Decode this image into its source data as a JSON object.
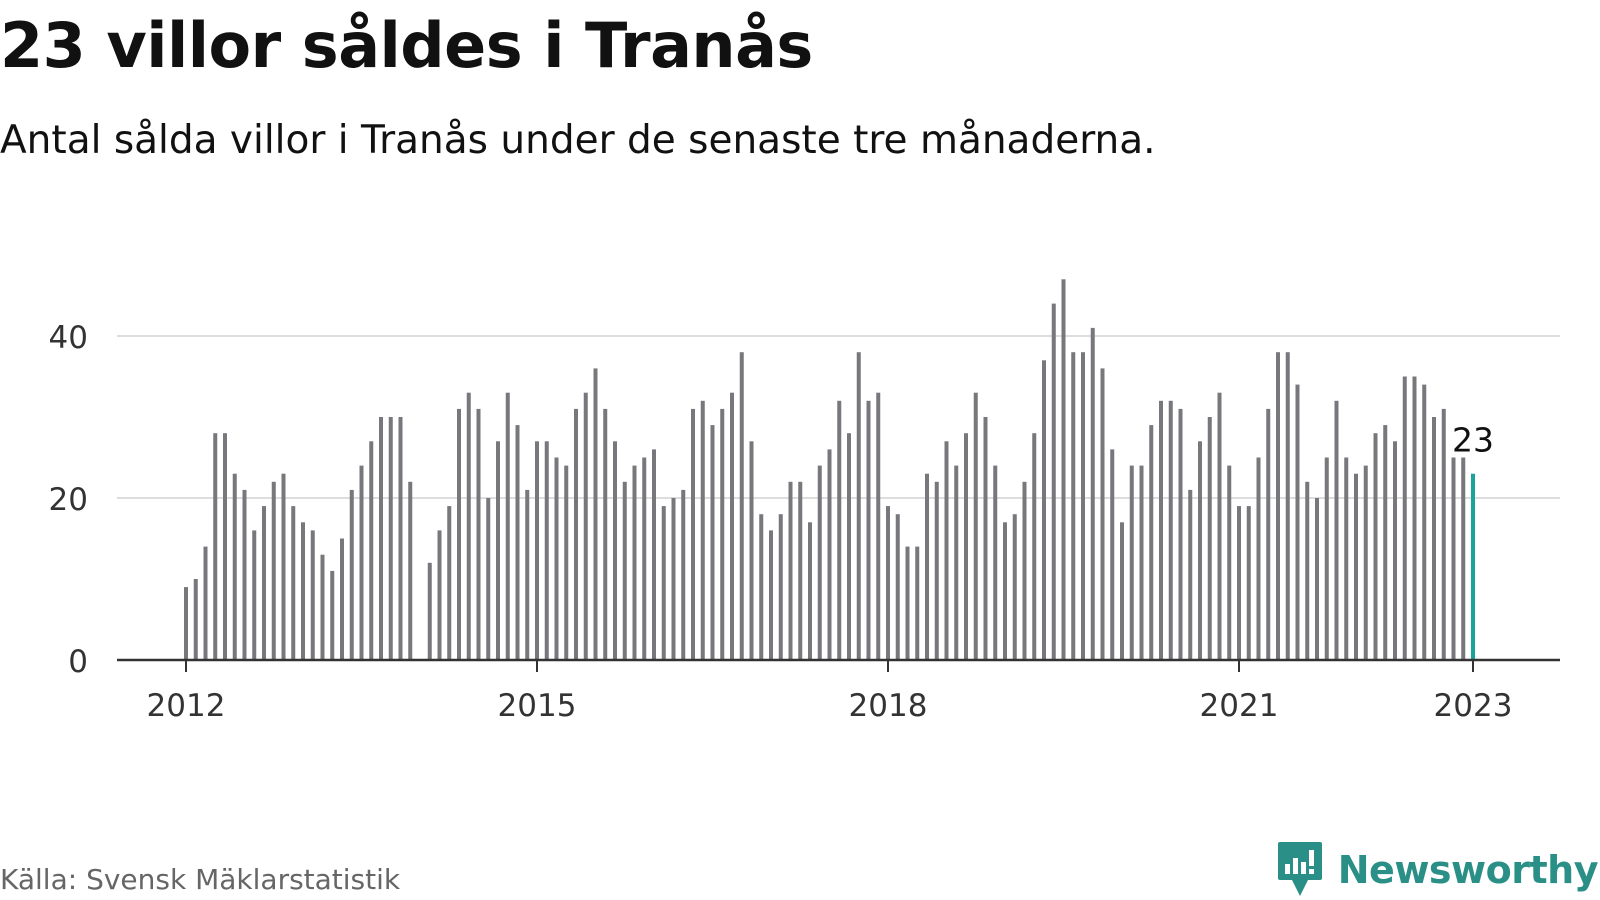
{
  "header": {
    "title": "23 villor såldes i Tranås",
    "subtitle": "Antal sålda villor i Tranås under de senaste tre månaderna."
  },
  "footer": {
    "source": "Källa: Svensk Mäklarstatistik",
    "brand": "Newsworthy"
  },
  "colors": {
    "bar": "#77777c",
    "highlight": "#1aa39a",
    "grid": "#dddddd",
    "axis": "#333333",
    "brand": "#2a8f86"
  },
  "chart_data": {
    "type": "bar",
    "x_unit": "month",
    "start": "2012-01",
    "values": [
      9,
      10,
      14,
      28,
      28,
      23,
      21,
      16,
      19,
      22,
      23,
      19,
      17,
      16,
      13,
      11,
      15,
      21,
      24,
      27,
      30,
      30,
      30,
      22,
      null,
      12,
      16,
      19,
      31,
      33,
      31,
      20,
      27,
      33,
      29,
      21,
      27,
      27,
      25,
      24,
      31,
      33,
      36,
      31,
      27,
      22,
      24,
      25,
      26,
      19,
      20,
      21,
      31,
      32,
      29,
      31,
      33,
      38,
      27,
      18,
      16,
      18,
      22,
      22,
      17,
      24,
      26,
      32,
      28,
      38,
      32,
      33,
      19,
      18,
      14,
      14,
      23,
      22,
      27,
      24,
      28,
      33,
      30,
      24,
      17,
      18,
      22,
      28,
      37,
      44,
      47,
      38,
      38,
      41,
      36,
      26,
      17,
      24,
      24,
      29,
      32,
      32,
      31,
      21,
      27,
      30,
      33,
      24,
      19,
      19,
      25,
      31,
      38,
      38,
      34,
      22,
      20,
      25,
      32,
      25,
      23,
      24,
      28,
      29,
      27,
      35,
      35,
      34,
      30,
      31,
      25,
      25,
      23
    ],
    "highlight_last": true,
    "last_label": "23",
    "x_ticks": [
      "2012",
      "2015",
      "2018",
      "2021",
      "2023"
    ],
    "y_ticks": [
      0,
      20,
      40
    ],
    "ylim": [
      0,
      50
    ],
    "grid": true
  }
}
